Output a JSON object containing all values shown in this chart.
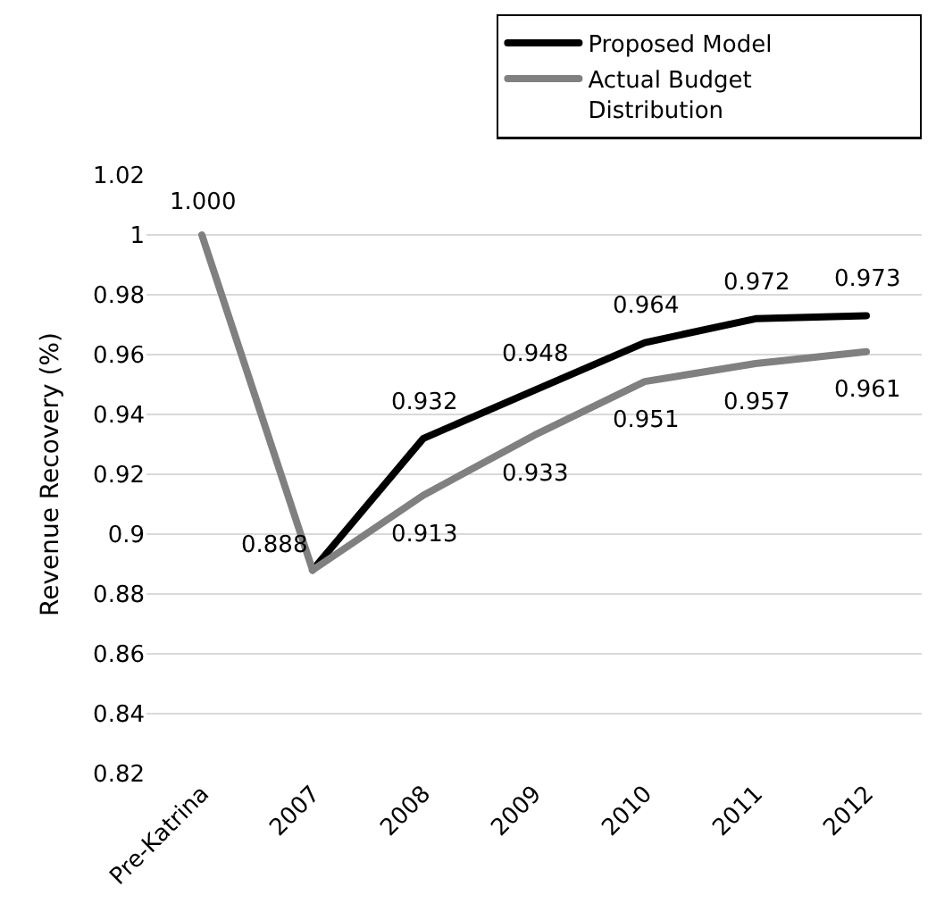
{
  "chart_data": {
    "type": "line",
    "ylabel": "Revenue Recovery (%)",
    "categories": [
      "Pre-Katrina",
      "2007",
      "2008",
      "2009",
      "2010",
      "2011",
      "2012"
    ],
    "series": [
      {
        "name": "Proposed Model",
        "color": "#000000",
        "values": [
          null,
          0.888,
          0.932,
          0.948,
          0.964,
          0.972,
          0.973
        ],
        "value_labels": [
          null,
          null,
          "0.932",
          "0.948",
          "0.964",
          "0.972",
          "0.973"
        ]
      },
      {
        "name": "Actual Budget Distribution",
        "color": "#808080",
        "values": [
          1.0,
          0.888,
          0.913,
          0.933,
          0.951,
          0.957,
          0.961
        ],
        "value_labels": [
          "1.000",
          "0.888",
          "0.913",
          "0.933",
          "0.951",
          "0.957",
          "0.961"
        ]
      }
    ],
    "ylim": [
      0.82,
      1.02
    ],
    "yticks": [
      {
        "value": 0.82,
        "label": "0.82"
      },
      {
        "value": 0.84,
        "label": "0.84"
      },
      {
        "value": 0.86,
        "label": "0.86"
      },
      {
        "value": 0.88,
        "label": "0.88"
      },
      {
        "value": 0.9,
        "label": "0.9"
      },
      {
        "value": 0.92,
        "label": "0.92"
      },
      {
        "value": 0.94,
        "label": "0.94"
      },
      {
        "value": 0.96,
        "label": "0.96"
      },
      {
        "value": 0.98,
        "label": "0.98"
      },
      {
        "value": 1,
        "label": "1"
      },
      {
        "value": 1.02,
        "label": "1.02"
      }
    ],
    "grid": "y",
    "legend": "top",
    "marker": "none",
    "line_style": "solid"
  }
}
